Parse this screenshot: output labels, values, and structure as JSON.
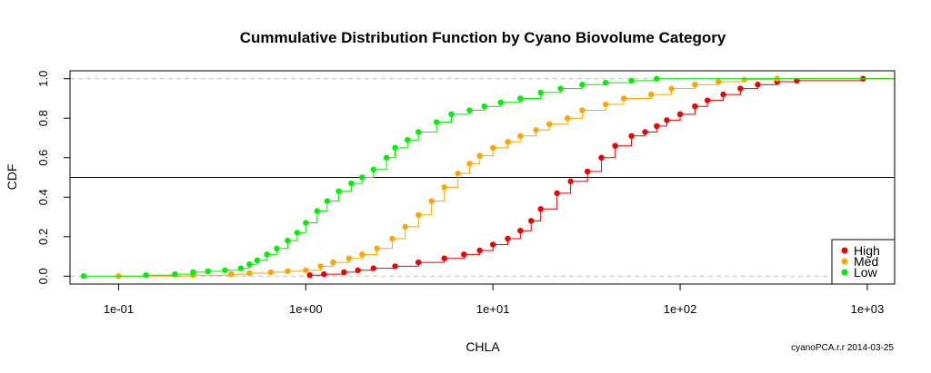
{
  "chart_data": {
    "type": "scatter",
    "title": "Cummulative Distribution Function by Cyano Biovolume Category",
    "xlabel": "CHLA",
    "ylabel": "CDF",
    "x_scale": "log10",
    "xlim": [
      0.055,
      1400
    ],
    "ylim": [
      -0.04,
      1.04
    ],
    "x_ticks": [
      {
        "value": 0.1,
        "label": "1e-01"
      },
      {
        "value": 1,
        "label": "1e+00"
      },
      {
        "value": 10,
        "label": "1e+01"
      },
      {
        "value": 100,
        "label": "1e+02"
      },
      {
        "value": 1000,
        "label": "1e+03"
      }
    ],
    "y_ticks": [
      {
        "value": 0.0,
        "label": "0.0"
      },
      {
        "value": 0.2,
        "label": "0.2"
      },
      {
        "value": 0.4,
        "label": "0.4"
      },
      {
        "value": 0.6,
        "label": "0.6"
      },
      {
        "value": 0.8,
        "label": "0.8"
      },
      {
        "value": 1.0,
        "label": "1.0"
      }
    ],
    "reference_lines": [
      {
        "y": 0.0,
        "style": "dashed",
        "color": "#bebebe"
      },
      {
        "y": 1.0,
        "style": "dashed",
        "color": "#bebebe"
      },
      {
        "y": 0.5,
        "style": "solid",
        "color": "#000000"
      }
    ],
    "legend_position": "bottom-right",
    "series": [
      {
        "name": "High",
        "color": "#ee0000",
        "x": [
          1.05,
          1.25,
          1.6,
          1.9,
          2.3,
          3.0,
          4.0,
          5.5,
          7.0,
          8.5,
          10.0,
          12.0,
          14.0,
          16.0,
          18.0,
          22.0,
          26.0,
          32.0,
          38.0,
          45.0,
          55.0,
          65.0,
          75.0,
          85.0,
          100.0,
          120.0,
          140.0,
          170.0,
          210.0,
          260.0,
          330.0,
          420.0,
          950.0
        ],
        "y": [
          0.005,
          0.01,
          0.02,
          0.03,
          0.04,
          0.05,
          0.07,
          0.09,
          0.11,
          0.13,
          0.16,
          0.19,
          0.23,
          0.28,
          0.34,
          0.42,
          0.48,
          0.53,
          0.6,
          0.66,
          0.71,
          0.73,
          0.76,
          0.79,
          0.82,
          0.86,
          0.89,
          0.92,
          0.95,
          0.97,
          0.985,
          0.99,
          1.0
        ]
      },
      {
        "name": "Med",
        "color": "#ffa500",
        "x": [
          0.1,
          0.25,
          0.4,
          0.5,
          0.65,
          0.8,
          1.0,
          1.2,
          1.4,
          1.7,
          2.0,
          2.4,
          2.9,
          3.4,
          4.0,
          4.7,
          5.5,
          6.5,
          7.5,
          8.5,
          10.0,
          12.0,
          14.0,
          17.0,
          20.0,
          25.0,
          30.0,
          40.0,
          50.0,
          70.0,
          90.0,
          120.0,
          160.0,
          220.0,
          330.0
        ],
        "y": [
          0.0,
          0.005,
          0.01,
          0.015,
          0.02,
          0.025,
          0.03,
          0.05,
          0.07,
          0.09,
          0.11,
          0.14,
          0.19,
          0.25,
          0.31,
          0.38,
          0.45,
          0.52,
          0.57,
          0.61,
          0.65,
          0.68,
          0.71,
          0.74,
          0.77,
          0.8,
          0.84,
          0.87,
          0.9,
          0.92,
          0.95,
          0.97,
          0.985,
          0.995,
          1.0
        ]
      },
      {
        "name": "Low",
        "color": "#00ee00",
        "x": [
          0.065,
          0.14,
          0.2,
          0.25,
          0.3,
          0.37,
          0.45,
          0.5,
          0.55,
          0.62,
          0.7,
          0.8,
          0.9,
          1.0,
          1.15,
          1.3,
          1.5,
          1.75,
          2.0,
          2.3,
          2.7,
          3.0,
          3.5,
          4.0,
          5.0,
          6.0,
          7.5,
          9.0,
          11.0,
          14.0,
          18.0,
          23.0,
          30.0,
          40.0,
          55.0,
          75.0
        ],
        "y": [
          0.0,
          0.005,
          0.01,
          0.02,
          0.025,
          0.03,
          0.04,
          0.06,
          0.08,
          0.11,
          0.14,
          0.18,
          0.22,
          0.27,
          0.33,
          0.38,
          0.43,
          0.47,
          0.5,
          0.54,
          0.6,
          0.65,
          0.69,
          0.73,
          0.78,
          0.82,
          0.84,
          0.86,
          0.88,
          0.9,
          0.93,
          0.95,
          0.97,
          0.98,
          0.99,
          1.0
        ]
      }
    ]
  },
  "footer": "cyanoPCA.r.r 2014-03-25"
}
